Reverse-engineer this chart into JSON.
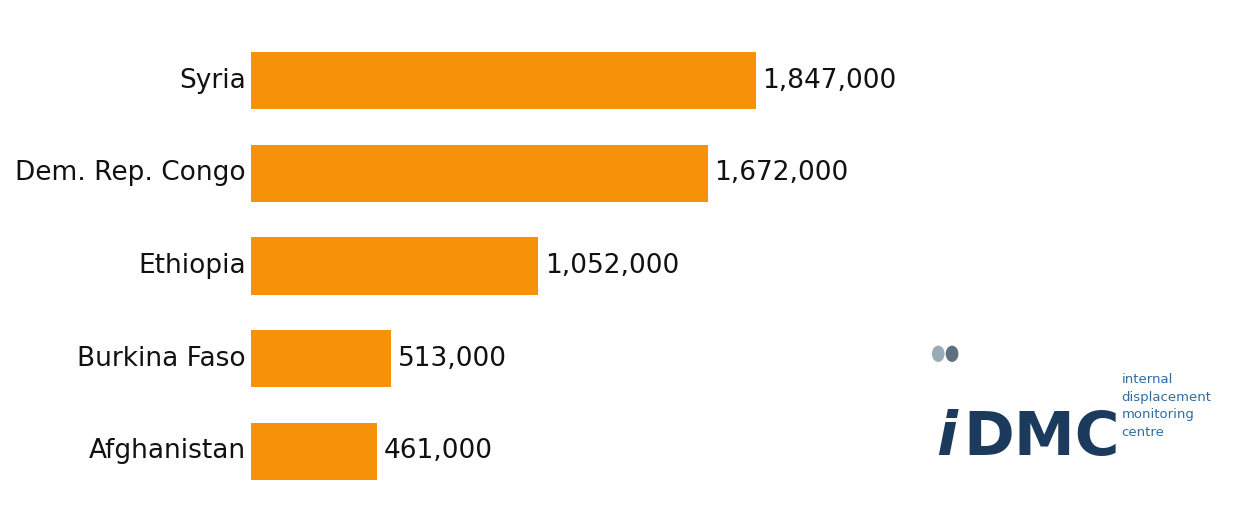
{
  "countries": [
    "Syria",
    "Dem. Rep. Congo",
    "Ethiopia",
    "Burkina Faso",
    "Afghanistan"
  ],
  "values": [
    1847000,
    1672000,
    1052000,
    513000,
    461000
  ],
  "labels": [
    "1,847,000",
    "1,672,000",
    "1,052,000",
    "513,000",
    "461,000"
  ],
  "bar_color": "#F5920A",
  "background_color": "#ffffff",
  "label_fontsize": 19,
  "country_fontsize": 19,
  "bar_height": 0.62,
  "xlim": [
    0,
    2300000
  ],
  "logo_color_i": "#9aabb8",
  "logo_color_dmc": "#1b3a5c",
  "logo_sub_color": "#2e6da4",
  "logo_sub_text": "internal\ndisplacement\nmonitoring\ncentre"
}
